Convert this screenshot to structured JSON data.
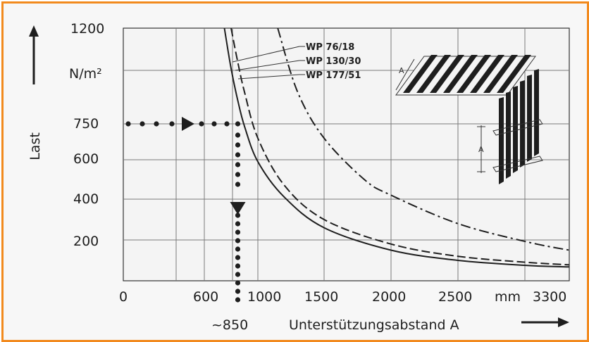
{
  "chart_data": {
    "type": "line",
    "xlabel": "Unterstützungsabstand A",
    "ylabel": "Last",
    "y_unit": "N/m²",
    "x_unit": "mm",
    "x_ticks": [
      0,
      600,
      1000,
      1500,
      2000,
      2500,
      3300
    ],
    "y_ticks": [
      200,
      400,
      600,
      750,
      1200
    ],
    "xlim": [
      0,
      3300
    ],
    "ylim": [
      0,
      1200
    ],
    "grid": true,
    "series": [
      {
        "name": "WP 76/18",
        "style": "solid",
        "x": [
          750,
          800,
          850,
          900,
          1000,
          1200,
          1500,
          2000,
          2500,
          3000,
          3300
        ],
        "y": [
          1200,
          1010,
          860,
          740,
          590,
          410,
          260,
          150,
          100,
          75,
          68
        ]
      },
      {
        "name": "WP 130/30",
        "style": "dashed",
        "x": [
          800,
          850,
          900,
          1000,
          1200,
          1500,
          2000,
          2500,
          3000,
          3300
        ],
        "y": [
          1200,
          1040,
          900,
          690,
          470,
          300,
          180,
          120,
          90,
          78
        ]
      },
      {
        "name": "WP 177/51",
        "style": "dashdot",
        "x": [
          1150,
          1300,
          1500,
          1800,
          2000,
          2500,
          3000,
          3300
        ],
        "y": [
          1200,
          900,
          690,
          500,
          420,
          280,
          190,
          150
        ]
      }
    ],
    "annotations": [
      {
        "label": "~850",
        "x": 850,
        "y": 750
      }
    ]
  },
  "labels": {
    "y_1200": "1200",
    "y_unit": "N/m²",
    "y_750": "750",
    "y_600": "600",
    "y_400": "400",
    "y_200": "200",
    "x_0": "0",
    "x_600": "600",
    "x_1000": "1000",
    "x_1500": "1500",
    "x_2000": "2000",
    "x_2500": "2500",
    "x_mm": "mm",
    "x_3300": "3300",
    "approx": "~850",
    "legend_1": "WP 76/18",
    "legend_2": "WP 130/30",
    "legend_3": "WP 177/51",
    "panel_dim": "A"
  },
  "colors": {
    "frame": "#f28a1e",
    "line": "#1e1e1e",
    "grid": "#7a7a7a",
    "background": "#f7f7f7"
  }
}
